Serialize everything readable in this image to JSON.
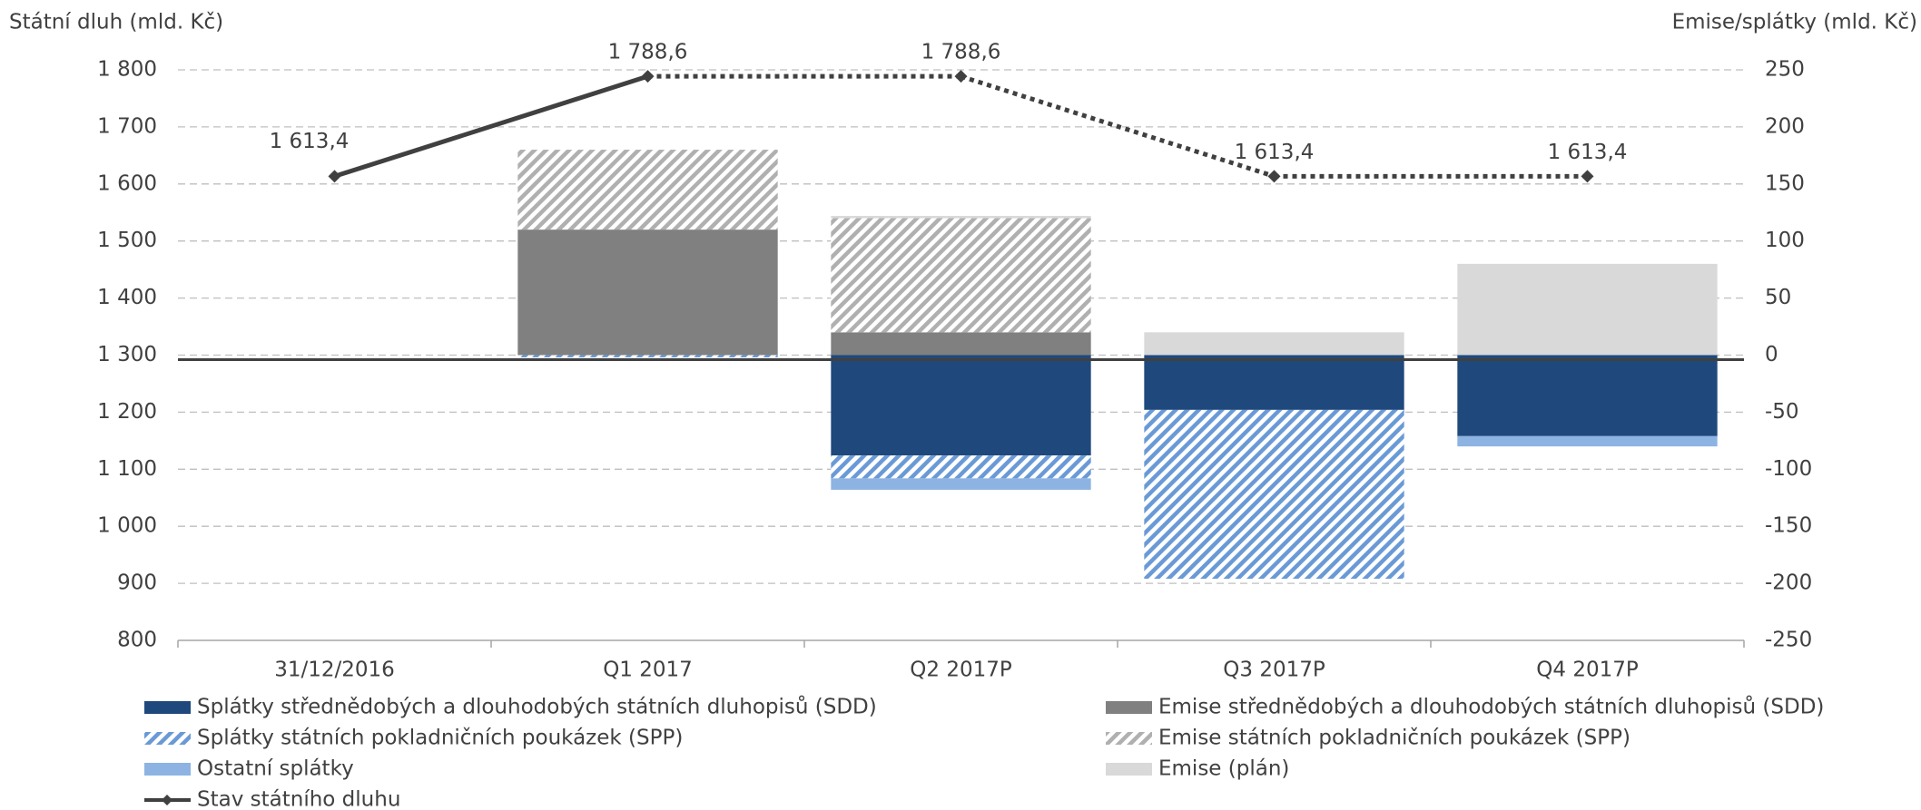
{
  "chart_data": {
    "type": "bar_line",
    "y_label": "Státní dluh (mld. Kč)",
    "y2_label": "Emise/splátky (mld. Kč)",
    "categories": [
      "31/12/2016",
      "Q1 2017",
      "Q2 2017P",
      "Q3 2017P",
      "Q4 2017P"
    ],
    "ylim": [
      800,
      1800
    ],
    "yticks": [
      800,
      900,
      {
        "value": 1000,
        "label": "1 000"
      },
      {
        "value": 1100,
        "label": "1 100"
      },
      {
        "value": 1200,
        "label": "1 200"
      },
      {
        "value": 1300,
        "label": "1 300"
      },
      {
        "value": 1400,
        "label": "1 400"
      },
      {
        "value": 1500,
        "label": "1 500"
      },
      {
        "value": 1600,
        "label": "1 600"
      },
      {
        "value": 1700,
        "label": "1 700"
      },
      {
        "value": 1800,
        "label": "1 800"
      }
    ],
    "y2lim": [
      -250,
      250
    ],
    "y2ticks": [
      -250,
      -200,
      -150,
      -100,
      -50,
      0,
      50,
      100,
      150,
      200,
      250
    ],
    "grid": true,
    "series": [
      {
        "name": "Splátky střednědobých a dlouhodobých státních dluhopisů (SDD)",
        "type": "bar",
        "axis": "y2",
        "color": "#1f497d",
        "pattern": "solid",
        "values": [
          null,
          0,
          -88,
          -48,
          -71
        ]
      },
      {
        "name": "Emise střednědobých a dlouhodobých státních dluhopisů (SDD)",
        "type": "bar",
        "axis": "y2",
        "color": "#808080",
        "pattern": "solid",
        "values": [
          null,
          110,
          20,
          0,
          0
        ]
      },
      {
        "name": "Splátky státních pokladničních poukázek (SPP)",
        "type": "bar",
        "axis": "y2",
        "color": "#6a9ad6",
        "pattern": "hatch",
        "values": [
          null,
          -2,
          -20,
          -148,
          0
        ]
      },
      {
        "name": "Emise státních pokladničních poukázek (SPP)",
        "type": "bar",
        "axis": "y2",
        "color": "#b0b0b0",
        "pattern": "hatch",
        "values": [
          null,
          70,
          100,
          0,
          0
        ]
      },
      {
        "name": "Ostatní splátky",
        "type": "bar",
        "axis": "y2",
        "color": "#8db3e2",
        "pattern": "solid",
        "values": [
          null,
          0,
          -10,
          0,
          -9
        ]
      },
      {
        "name": "Emise (plán)",
        "type": "bar",
        "axis": "y2",
        "color": "#d9d9d9",
        "pattern": "solid",
        "values": [
          null,
          0,
          2,
          20,
          80
        ]
      },
      {
        "name": "Stav státního dluhu",
        "type": "line",
        "axis": "y",
        "color": "#404040",
        "dotted_from": 1,
        "values": [
          1613.4,
          1788.6,
          1788.6,
          1613.4,
          1613.4
        ],
        "value_labels": [
          "1 613,4",
          "1 788,6",
          "1 788,6",
          "1 613,4",
          "1 613,4"
        ]
      }
    ]
  }
}
